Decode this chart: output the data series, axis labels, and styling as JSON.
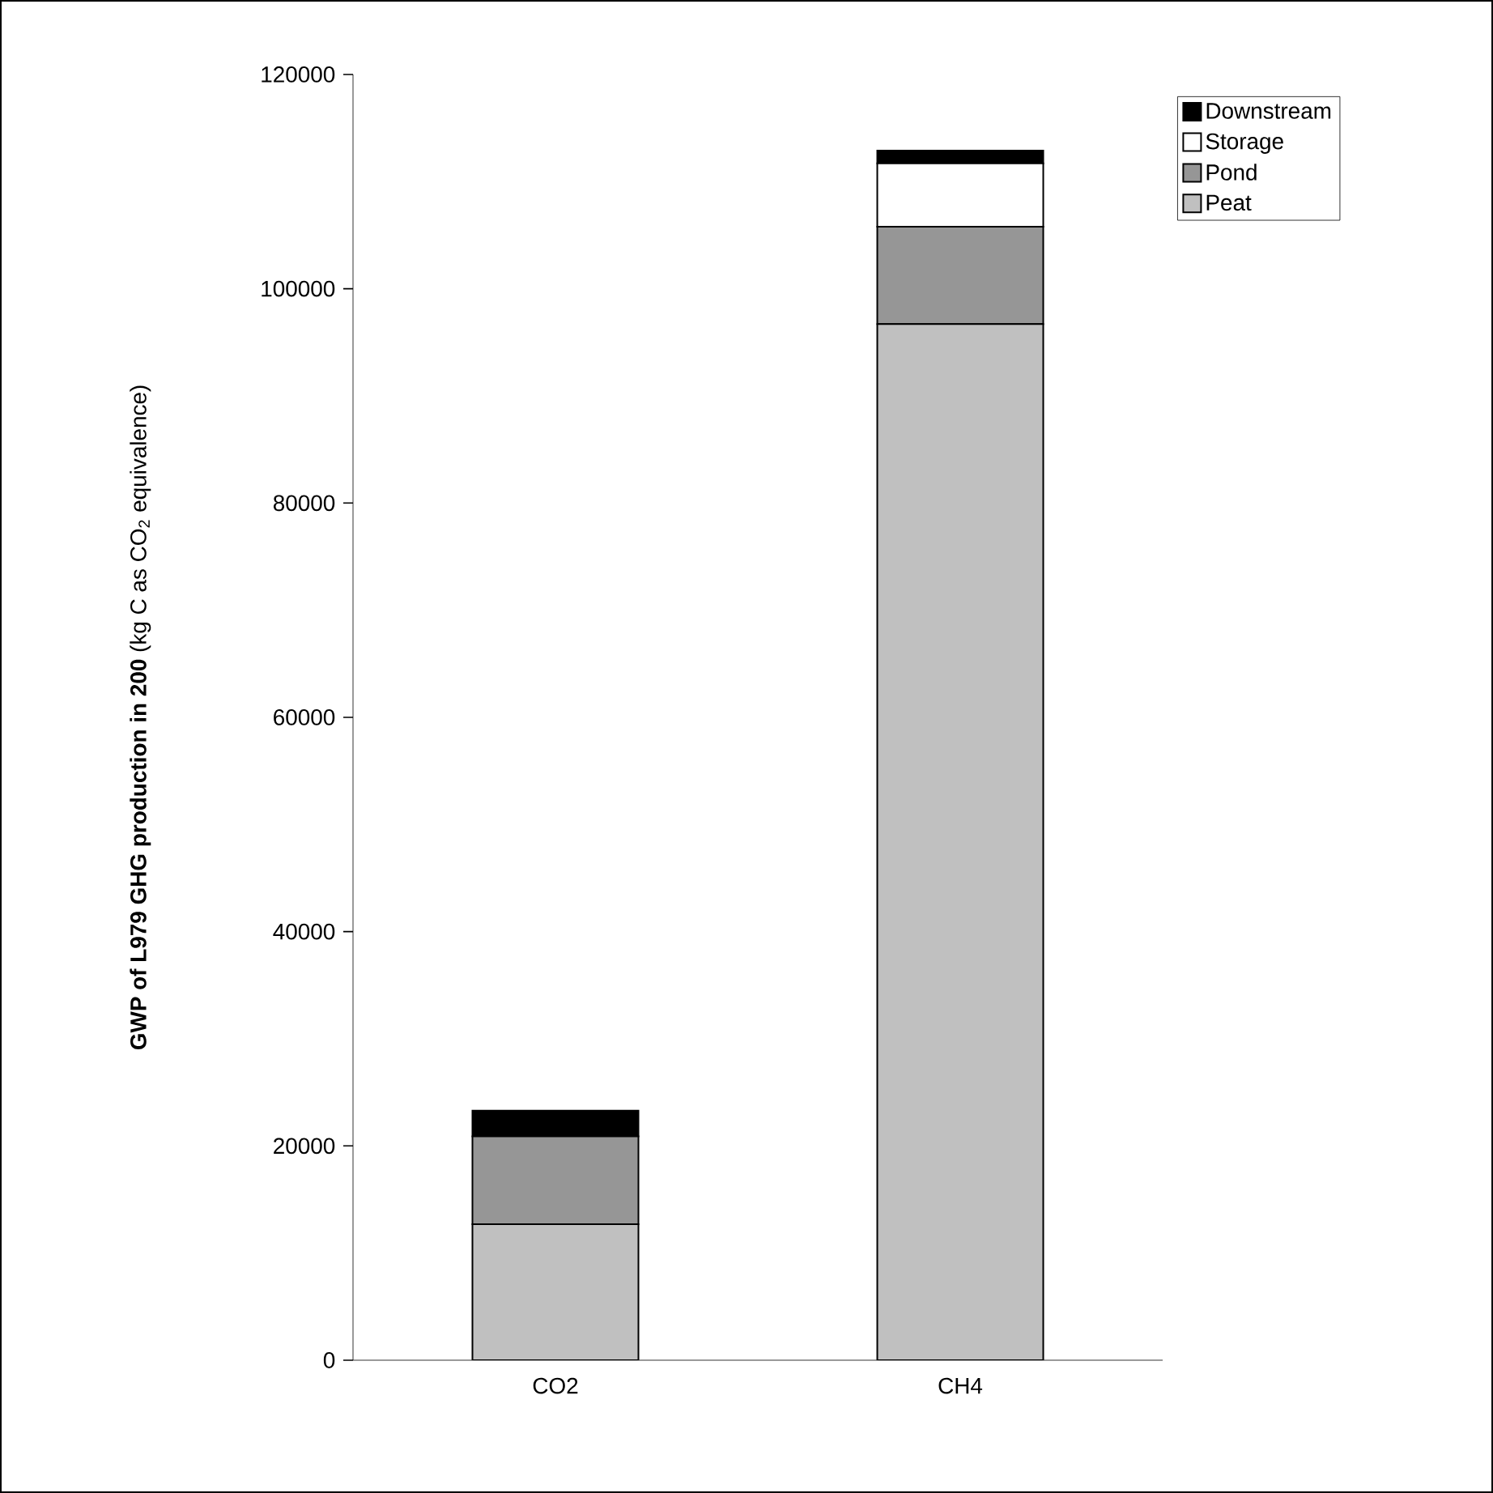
{
  "chart_data": {
    "type": "bar",
    "stacked": true,
    "ylabel": "**GWP of L979 GHG production in 200** (kg C as CO$_{2}$ equivalence)",
    "categories": [
      "CO2",
      "CH4"
    ],
    "series": [
      {
        "name": "Peat",
        "color": "#c0c0c0",
        "values": [
          12700,
          96700
        ]
      },
      {
        "name": "Pond",
        "color": "#969696",
        "values": [
          8200,
          9100
        ]
      },
      {
        "name": "Storage",
        "color": "#ffffff",
        "values": [
          0,
          5900
        ]
      },
      {
        "name": "Downstream",
        "color": "#000000",
        "values": [
          2400,
          1200
        ]
      }
    ],
    "ylim": [
      0,
      120000
    ],
    "yticks": [
      0,
      20000,
      40000,
      60000,
      80000,
      100000,
      120000
    ],
    "grid": false,
    "legend": "top right"
  }
}
